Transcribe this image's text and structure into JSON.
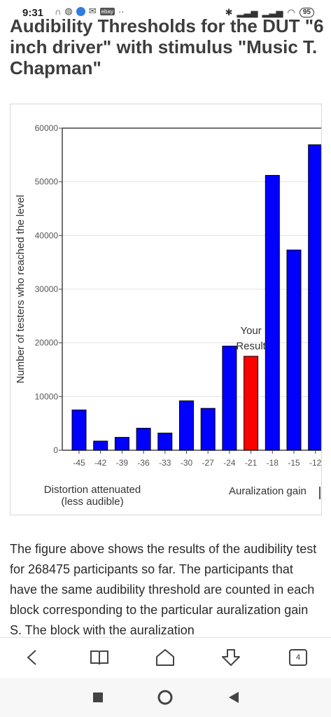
{
  "status_bar": {
    "time": "9:31",
    "ebay_badge": "ebay",
    "overflow_dots": "··",
    "battery": "95"
  },
  "page": {
    "title": "Audibility Thresholds for the DUT \"6 inch driver\" with stimulus \"Music T. Chapman\""
  },
  "chart_data": {
    "type": "bar",
    "categories": [
      "-45",
      "-42",
      "-39",
      "-36",
      "-33",
      "-30",
      "-27",
      "-24",
      "-21",
      "-18",
      "-15",
      "-12"
    ],
    "values": [
      7500,
      1700,
      2400,
      4100,
      3200,
      9200,
      7800,
      19400,
      17500,
      51200,
      37300,
      56900
    ],
    "highlight_index": 8,
    "colors": {
      "bar": "#0000ff",
      "highlight": "#ff0000",
      "bar_stroke": "#000000"
    },
    "ylabel": "Number of testers who reached the level",
    "ylim": [
      0,
      60000
    ],
    "yticks": [
      "0",
      "10000",
      "20000",
      "30000",
      "40000",
      "50000",
      "60000"
    ],
    "annotation": {
      "line1": "Your",
      "line2": "Result"
    },
    "footer_left": [
      "Distortion attenuated",
      "(less audible)"
    ],
    "footer_right": "Auralization gain",
    "grid": true
  },
  "body_text": "The figure above shows the results of the audibility test for 268475 participants so far. The participants that have the same audibility threshold are counted in each block corresponding to the particular auralization gain S. The block with the auralization",
  "toolbar": {
    "tab_count": "4",
    "icons": [
      "back-icon",
      "reader-icon",
      "home-icon",
      "download-icon",
      "tabs-icon"
    ]
  },
  "navigation": {
    "icons": [
      "recents-icon",
      "home-circle-icon",
      "back-triangle-icon"
    ]
  }
}
